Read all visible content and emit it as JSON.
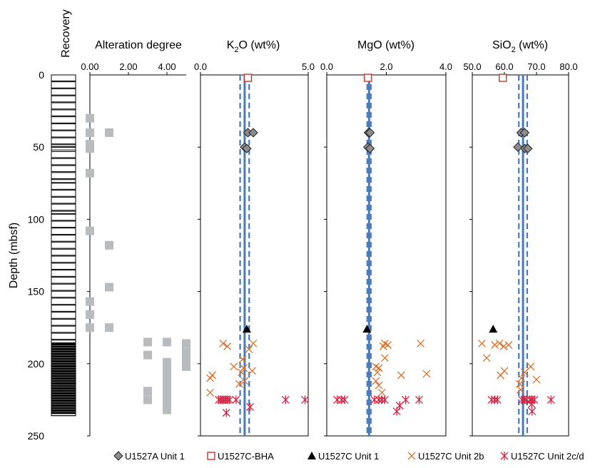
{
  "figure": {
    "recovery_label": "Recovery",
    "depth_label": "Depth (mbsf)",
    "depth_ticks": [
      "0",
      "50",
      "100",
      "150",
      "200",
      "250"
    ]
  },
  "colors": {
    "hostA": "#8c8c8c",
    "bha": "#c0392b",
    "unit1": "#000000",
    "unit2b": "#d9732e",
    "unit2cd": "#d81f3f",
    "alteration": "#b8bcbe",
    "ref": "#4a78b8"
  },
  "legend": [
    {
      "key": "hostA",
      "label": "U1527A Unit 1"
    },
    {
      "key": "bha",
      "label": "U1527C-BHA"
    },
    {
      "key": "unit1",
      "label": "U1527C Unit 1"
    },
    {
      "key": "unit2b",
      "label": "U1527C Unit 2b"
    },
    {
      "key": "unit2cd",
      "label": "U1527C Unit 2c/d"
    }
  ],
  "chart_data": [
    {
      "type": "table",
      "panel": "recovery",
      "ylabel": "Depth (mbsf)",
      "ylim": [
        0,
        250
      ],
      "cores": [
        [
          0,
          4.2
        ],
        [
          4.8,
          9
        ],
        [
          9.6,
          13.9
        ],
        [
          14.5,
          18.7
        ],
        [
          19.3,
          23.6
        ],
        [
          24.2,
          28.4
        ],
        [
          29,
          33.3
        ],
        [
          33.9,
          38.1
        ],
        [
          38.7,
          43
        ],
        [
          43.6,
          47.8
        ],
        [
          48.4,
          49.7
        ],
        [
          50.2,
          52
        ],
        [
          53.1,
          57.3
        ],
        [
          57.9,
          62.2
        ],
        [
          62.8,
          67
        ],
        [
          67.6,
          71.9
        ],
        [
          72.5,
          74.5
        ],
        [
          75,
          79.2
        ],
        [
          79.8,
          84.1
        ],
        [
          84.7,
          88.9
        ],
        [
          89.5,
          93.8
        ],
        [
          94.4,
          96
        ],
        [
          96.5,
          100.7
        ],
        [
          101.3,
          105.5
        ],
        [
          106.1,
          110.4
        ],
        [
          111,
          115.2
        ],
        [
          115.8,
          120.1
        ],
        [
          120.7,
          124.9
        ],
        [
          125.5,
          129.8
        ],
        [
          130.4,
          134.6
        ],
        [
          135.2,
          139.5
        ],
        [
          140.1,
          144.3
        ],
        [
          144.9,
          149.2
        ],
        [
          149.8,
          154
        ],
        [
          154.6,
          158.9
        ],
        [
          159.5,
          163.7
        ],
        [
          164.3,
          168.6
        ],
        [
          169.2,
          173.4
        ],
        [
          174,
          178.3
        ],
        [
          178.9,
          183.1
        ],
        [
          183.7,
          186
        ],
        [
          186,
          187
        ],
        [
          187.7,
          188.7
        ],
        [
          189.4,
          190.4
        ],
        [
          191.1,
          192.1
        ],
        [
          192.8,
          193.8
        ],
        [
          194.5,
          195.5
        ],
        [
          196.2,
          197.2
        ],
        [
          197.9,
          198.9
        ],
        [
          199.6,
          200.6
        ],
        [
          201.3,
          202.3
        ],
        [
          203,
          204
        ],
        [
          204.7,
          205.7
        ],
        [
          206.4,
          207.4
        ],
        [
          208.1,
          209.1
        ],
        [
          209.8,
          210.8
        ],
        [
          211.5,
          212.5
        ],
        [
          213.2,
          214.2
        ],
        [
          214.9,
          215.9
        ],
        [
          216.6,
          217.6
        ],
        [
          218.3,
          219.3
        ],
        [
          220,
          221
        ],
        [
          221.7,
          222.7
        ],
        [
          223.4,
          224.4
        ],
        [
          225.1,
          226.1
        ],
        [
          226.8,
          227.8
        ],
        [
          228.5,
          229.5
        ],
        [
          230.2,
          231.2
        ],
        [
          231.9,
          232.9
        ],
        [
          233.6,
          234.6
        ]
      ]
    },
    {
      "type": "scatter",
      "panel": "alteration",
      "title": "Alteration degree",
      "xticks": [
        "0.00",
        "2.00",
        "4.00"
      ],
      "xlim": [
        0,
        5
      ],
      "ylim": [
        0,
        250
      ],
      "points": [
        {
          "x": 0,
          "y": 30
        },
        {
          "x": 0,
          "y": 40
        },
        {
          "x": 0,
          "y": 48
        },
        {
          "x": 0,
          "y": 51
        },
        {
          "x": 0,
          "y": 68
        },
        {
          "x": 0,
          "y": 108
        },
        {
          "x": 0,
          "y": 157
        },
        {
          "x": 0,
          "y": 166
        },
        {
          "x": 0,
          "y": 175
        },
        {
          "x": 1,
          "y": 40
        },
        {
          "x": 1,
          "y": 118
        },
        {
          "x": 1,
          "y": 147
        },
        {
          "x": 1,
          "y": 175
        },
        {
          "x": 3,
          "y": 185
        },
        {
          "x": 3,
          "y": 194
        },
        {
          "x": 3,
          "y": 219
        },
        {
          "x": 3,
          "y": 225
        },
        {
          "x": 4,
          "y": 185
        },
        {
          "x": 4,
          "y": 199
        },
        {
          "x": 4,
          "y": 204
        },
        {
          "x": 4,
          "y": 208
        },
        {
          "x": 4,
          "y": 213
        },
        {
          "x": 4,
          "y": 218
        },
        {
          "x": 4,
          "y": 222
        },
        {
          "x": 4,
          "y": 227
        },
        {
          "x": 4,
          "y": 232
        },
        {
          "x": 5,
          "y": 186
        },
        {
          "x": 5,
          "y": 192
        },
        {
          "x": 5,
          "y": 197
        },
        {
          "x": 5,
          "y": 202
        }
      ]
    },
    {
      "type": "scatter",
      "panel": "k2o",
      "title": "K2O (wt%)",
      "title_main": "K",
      "title_sub": "2",
      "title_rest": "O (wt%)",
      "xticks": [
        "0.0",
        "5.0"
      ],
      "xlim": [
        0,
        5
      ],
      "ylim": [
        0,
        250
      ],
      "ref_lines": {
        "mean": 2.05,
        "lower": 1.84,
        "upper": 2.26
      },
      "series": [
        {
          "name": "U1527A Unit 1",
          "points": [
            {
              "x": 2.2,
              "y": 40
            },
            {
              "x": 2.45,
              "y": 40
            },
            {
              "x": 2.05,
              "y": 50
            },
            {
              "x": 2.15,
              "y": 51
            }
          ]
        },
        {
          "name": "U1527C-BHA",
          "points": [
            {
              "x": 2.2,
              "y": 2
            }
          ]
        },
        {
          "name": "U1527C Unit 1",
          "points": [
            {
              "x": 2.15,
              "y": 176
            }
          ]
        },
        {
          "name": "U1527C Unit 2b",
          "points": [
            {
              "x": 1.05,
              "y": 186
            },
            {
              "x": 1.25,
              "y": 188
            },
            {
              "x": 2.45,
              "y": 186
            },
            {
              "x": 2.25,
              "y": 190
            },
            {
              "x": 1.95,
              "y": 197
            },
            {
              "x": 1.55,
              "y": 202
            },
            {
              "x": 2.0,
              "y": 203
            },
            {
              "x": 1.9,
              "y": 206
            },
            {
              "x": 2.4,
              "y": 205
            },
            {
              "x": 0.55,
              "y": 208
            },
            {
              "x": 0.45,
              "y": 210
            },
            {
              "x": 2.05,
              "y": 212
            },
            {
              "x": 1.8,
              "y": 214
            },
            {
              "x": 0.45,
              "y": 220
            }
          ]
        },
        {
          "name": "U1527C Unit 2c/d",
          "points": [
            {
              "x": 0.85,
              "y": 225
            },
            {
              "x": 0.95,
              "y": 225
            },
            {
              "x": 1.05,
              "y": 225
            },
            {
              "x": 1.15,
              "y": 225
            },
            {
              "x": 1.25,
              "y": 225
            },
            {
              "x": 1.35,
              "y": 225
            },
            {
              "x": 1.65,
              "y": 225
            },
            {
              "x": 3.95,
              "y": 225
            },
            {
              "x": 4.85,
              "y": 225
            },
            {
              "x": 2.3,
              "y": 230
            },
            {
              "x": 1.2,
              "y": 234
            }
          ]
        }
      ]
    },
    {
      "type": "scatter",
      "panel": "mgo",
      "title": "MgO (wt%)",
      "xticks": [
        "0.0",
        "2.0",
        "4.0"
      ],
      "xlim": [
        0,
        4
      ],
      "ylim": [
        0,
        250
      ],
      "ref_lines": {
        "mean": 1.42,
        "lower": 1.36,
        "upper": 1.48
      },
      "series": [
        {
          "name": "U1527A Unit 1",
          "points": [
            {
              "x": 1.4,
              "y": 40
            },
            {
              "x": 1.45,
              "y": 40
            },
            {
              "x": 1.38,
              "y": 50
            },
            {
              "x": 1.45,
              "y": 51
            }
          ]
        },
        {
          "name": "U1527C-BHA",
          "points": [
            {
              "x": 1.38,
              "y": 2
            }
          ]
        },
        {
          "name": "U1527C Unit 1",
          "points": [
            {
              "x": 1.35,
              "y": 176
            }
          ]
        },
        {
          "name": "U1527C Unit 2b",
          "points": [
            {
              "x": 1.95,
              "y": 186
            },
            {
              "x": 1.9,
              "y": 188
            },
            {
              "x": 2.05,
              "y": 187
            },
            {
              "x": 3.15,
              "y": 186
            },
            {
              "x": 1.95,
              "y": 196
            },
            {
              "x": 1.65,
              "y": 202
            },
            {
              "x": 1.75,
              "y": 203
            },
            {
              "x": 1.7,
              "y": 206
            },
            {
              "x": 2.5,
              "y": 208
            },
            {
              "x": 3.35,
              "y": 207
            },
            {
              "x": 1.65,
              "y": 212
            },
            {
              "x": 1.75,
              "y": 215
            },
            {
              "x": 1.85,
              "y": 220
            }
          ]
        },
        {
          "name": "U1527C Unit 2c/d",
          "points": [
            {
              "x": 0.35,
              "y": 225
            },
            {
              "x": 0.5,
              "y": 225
            },
            {
              "x": 0.6,
              "y": 225
            },
            {
              "x": 1.6,
              "y": 225
            },
            {
              "x": 1.75,
              "y": 225
            },
            {
              "x": 1.85,
              "y": 225
            },
            {
              "x": 1.95,
              "y": 225
            },
            {
              "x": 2.65,
              "y": 225
            },
            {
              "x": 3.1,
              "y": 225
            },
            {
              "x": 2.45,
              "y": 229
            },
            {
              "x": 2.35,
              "y": 233
            }
          ]
        }
      ]
    },
    {
      "type": "scatter",
      "panel": "sio2",
      "title": "SiO2 (wt%)",
      "title_main": "SiO",
      "title_sub": "2",
      "title_rest": " (wt%)",
      "xticks": [
        "50.0",
        "60.0",
        "70.0",
        "80.0"
      ],
      "xlim": [
        50,
        80
      ],
      "ylim": [
        0,
        250
      ],
      "ref_lines": {
        "mean": 65.8,
        "lower": 64.5,
        "upper": 67.1
      },
      "series": [
        {
          "name": "U1527A Unit 1",
          "points": [
            {
              "x": 65.2,
              "y": 40
            },
            {
              "x": 66.3,
              "y": 40
            },
            {
              "x": 64.2,
              "y": 50
            },
            {
              "x": 66.4,
              "y": 51
            },
            {
              "x": 67.3,
              "y": 51
            }
          ]
        },
        {
          "name": "U1527C-BHA",
          "points": [
            {
              "x": 59.5,
              "y": 2
            }
          ]
        },
        {
          "name": "U1527C Unit 1",
          "points": [
            {
              "x": 56.5,
              "y": 176
            }
          ]
        },
        {
          "name": "U1527C Unit 2b",
          "points": [
            {
              "x": 53.0,
              "y": 186
            },
            {
              "x": 57.0,
              "y": 187
            },
            {
              "x": 58.5,
              "y": 186
            },
            {
              "x": 59.8,
              "y": 188
            },
            {
              "x": 61.3,
              "y": 187
            },
            {
              "x": 54.5,
              "y": 196
            },
            {
              "x": 68.2,
              "y": 202
            },
            {
              "x": 60.0,
              "y": 205
            },
            {
              "x": 58.8,
              "y": 208
            },
            {
              "x": 65.3,
              "y": 210
            },
            {
              "x": 70.0,
              "y": 211
            },
            {
              "x": 66.3,
              "y": 206
            },
            {
              "x": 64.8,
              "y": 214
            },
            {
              "x": 65.0,
              "y": 218
            }
          ]
        },
        {
          "name": "U1527C Unit 2c/d",
          "points": [
            {
              "x": 56.0,
              "y": 225
            },
            {
              "x": 57.0,
              "y": 225
            },
            {
              "x": 57.8,
              "y": 225
            },
            {
              "x": 65.5,
              "y": 225
            },
            {
              "x": 66.2,
              "y": 225
            },
            {
              "x": 66.8,
              "y": 225
            },
            {
              "x": 68.0,
              "y": 225
            },
            {
              "x": 68.6,
              "y": 225
            },
            {
              "x": 69.3,
              "y": 225
            },
            {
              "x": 74.5,
              "y": 225
            },
            {
              "x": 68.5,
              "y": 228
            },
            {
              "x": 68.6,
              "y": 233
            }
          ]
        }
      ]
    }
  ]
}
